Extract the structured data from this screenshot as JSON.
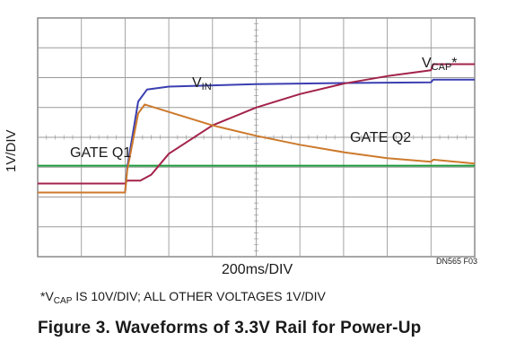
{
  "chart_data": {
    "type": "line",
    "ylabel": "1V/DIV",
    "xlabel": "200ms/DIV",
    "figure_code": "DN565 F03",
    "divisions": {
      "x": 10,
      "y": 8
    },
    "grid": true,
    "x_units": "divisions (200ms/DIV)",
    "y_units": "divisions (1V/DIV; VCAP 10V/DIV)",
    "series": [
      {
        "name": "GATE Q1",
        "color": "#1a9a3a",
        "points": [
          [
            0,
            3.05
          ],
          [
            10,
            3.05
          ]
        ]
      },
      {
        "name": "VIN",
        "color": "#3b3fb0",
        "points": [
          [
            0,
            2.15
          ],
          [
            2.0,
            2.15
          ],
          [
            2.05,
            3.0
          ],
          [
            2.3,
            5.2
          ],
          [
            2.5,
            5.6
          ],
          [
            3.0,
            5.7
          ],
          [
            5.0,
            5.78
          ],
          [
            7.0,
            5.82
          ],
          [
            9.0,
            5.84
          ],
          [
            9.05,
            5.93
          ],
          [
            10,
            5.93
          ]
        ]
      },
      {
        "name": "VCAP*",
        "color": "#a3234a",
        "points": [
          [
            0,
            2.45
          ],
          [
            2.0,
            2.45
          ],
          [
            2.05,
            2.55
          ],
          [
            2.35,
            2.55
          ],
          [
            2.6,
            2.75
          ],
          [
            3.0,
            3.45
          ],
          [
            4.0,
            4.4
          ],
          [
            5.0,
            5.0
          ],
          [
            6.0,
            5.45
          ],
          [
            7.0,
            5.8
          ],
          [
            8.0,
            6.05
          ],
          [
            9.0,
            6.25
          ],
          [
            9.05,
            6.45
          ],
          [
            10,
            6.45
          ]
        ]
      },
      {
        "name": "GATE Q2",
        "color": "#cd7a2c",
        "points": [
          [
            0,
            2.15
          ],
          [
            2.0,
            2.15
          ],
          [
            2.05,
            2.9
          ],
          [
            2.3,
            4.8
          ],
          [
            2.45,
            5.1
          ],
          [
            3.0,
            4.85
          ],
          [
            4.0,
            4.4
          ],
          [
            5.0,
            4.05
          ],
          [
            6.0,
            3.75
          ],
          [
            7.0,
            3.5
          ],
          [
            8.0,
            3.3
          ],
          [
            9.0,
            3.18
          ],
          [
            9.05,
            3.25
          ],
          [
            10,
            3.12
          ]
        ]
      }
    ],
    "labels": {
      "gate_q1": "GATE Q1",
      "vin_main": "V",
      "vin_sub": "IN",
      "vcap_main": "V",
      "vcap_sub": "CAP",
      "vcap_suffix": "*",
      "gate_q2": "GATE Q2"
    }
  },
  "footnote": {
    "pre": "*V",
    "sub": "CAP",
    "post": " IS 10V/DIV; ALL OTHER VOLTAGES 1V/DIV"
  },
  "figure_title": "Figure 3. Waveforms of 3.3V Rail for Power-Up"
}
